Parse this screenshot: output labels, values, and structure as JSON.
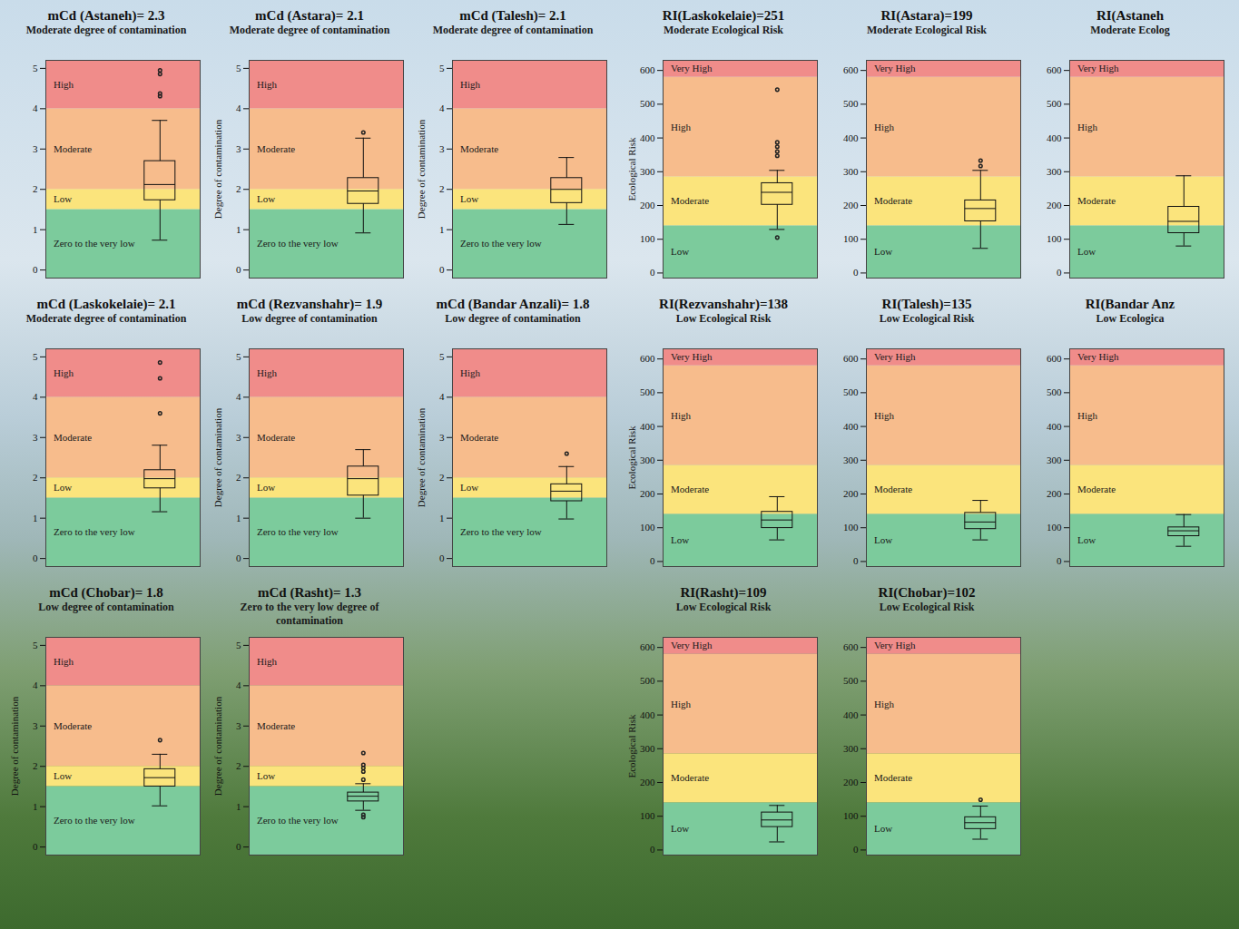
{
  "chart_data": [
    {
      "type": "boxplot",
      "title": "mCd (Astaneh)= 2.3",
      "subtitle": "Moderate degree of contamination",
      "ylabel": null,
      "ylim": [
        -0.2,
        5.2
      ],
      "yticks": [
        0,
        1,
        2,
        3,
        4,
        5
      ],
      "bands": [
        {
          "from": -0.2,
          "to": 1.5,
          "label": "Zero to the very low",
          "color": "#7ccb9c"
        },
        {
          "from": 1.5,
          "to": 2,
          "label": "Low",
          "color": "#fbe47c"
        },
        {
          "from": 2,
          "to": 4,
          "label": "Moderate",
          "color": "#f7bc8c"
        },
        {
          "from": 4,
          "to": 5.2,
          "label": "High",
          "color": "#f08c8a"
        }
      ],
      "box": {
        "whisker_low": 0.74,
        "q1": 1.73,
        "median": 2.12,
        "q3": 2.7,
        "whisker_high": 3.71
      },
      "outliers": [
        4.31,
        4.38,
        4.86,
        4.95
      ]
    },
    {
      "type": "boxplot",
      "title": "mCd (Astara)= 2.1",
      "subtitle": "Moderate degree of contamination",
      "ylabel": "Degree of contamination",
      "ylim": [
        -0.2,
        5.2
      ],
      "yticks": [
        0,
        1,
        2,
        3,
        4,
        5
      ],
      "bands": [
        {
          "from": -0.2,
          "to": 1.5,
          "label": "Zero to the very low",
          "color": "#7ccb9c"
        },
        {
          "from": 1.5,
          "to": 2,
          "label": "Low",
          "color": "#fbe47c"
        },
        {
          "from": 2,
          "to": 4,
          "label": "Moderate",
          "color": "#f7bc8c"
        },
        {
          "from": 4,
          "to": 5.2,
          "label": "High",
          "color": "#f08c8a"
        }
      ],
      "box": {
        "whisker_low": 0.92,
        "q1": 1.64,
        "median": 1.96,
        "q3": 2.28,
        "whisker_high": 3.27
      },
      "outliers": [
        3.41
      ]
    },
    {
      "type": "boxplot",
      "title": "mCd (Talesh)= 2.1",
      "subtitle": "Moderate degree of contamination",
      "ylabel": "Degree of contamination",
      "ylim": [
        -0.2,
        5.2
      ],
      "yticks": [
        0,
        1,
        2,
        3,
        4,
        5
      ],
      "bands": [
        {
          "from": -0.2,
          "to": 1.5,
          "label": "Zero to the very low",
          "color": "#7ccb9c"
        },
        {
          "from": 1.5,
          "to": 2,
          "label": "Low",
          "color": "#fbe47c"
        },
        {
          "from": 2,
          "to": 4,
          "label": "Moderate",
          "color": "#f7bc8c"
        },
        {
          "from": 4,
          "to": 5.2,
          "label": "High",
          "color": "#f08c8a"
        }
      ],
      "box": {
        "whisker_low": 1.13,
        "q1": 1.66,
        "median": 2.0,
        "q3": 2.28,
        "whisker_high": 2.79
      },
      "outliers": []
    },
    {
      "type": "boxplot",
      "title": "mCd (Laskokelaie)= 2.1",
      "subtitle": "Moderate degree of contamination",
      "ylabel": null,
      "ylim": [
        -0.2,
        5.2
      ],
      "yticks": [
        0,
        1,
        2,
        3,
        4,
        5
      ],
      "bands": [
        {
          "from": -0.2,
          "to": 1.5,
          "label": "Zero to the very low",
          "color": "#7ccb9c"
        },
        {
          "from": 1.5,
          "to": 2,
          "label": "Low",
          "color": "#fbe47c"
        },
        {
          "from": 2,
          "to": 4,
          "label": "Moderate",
          "color": "#f7bc8c"
        },
        {
          "from": 4,
          "to": 5.2,
          "label": "High",
          "color": "#f08c8a"
        }
      ],
      "box": {
        "whisker_low": 1.16,
        "q1": 1.74,
        "median": 1.98,
        "q3": 2.19,
        "whisker_high": 2.81
      },
      "outliers": [
        3.6,
        4.47,
        4.86
      ]
    },
    {
      "type": "boxplot",
      "title": "mCd (Rezvanshahr)= 1.9",
      "subtitle": "Low degree of contamination",
      "ylabel": "Degree of contamination",
      "ylim": [
        -0.2,
        5.2
      ],
      "yticks": [
        0,
        1,
        2,
        3,
        4,
        5
      ],
      "bands": [
        {
          "from": -0.2,
          "to": 1.5,
          "label": "Zero to the very low",
          "color": "#7ccb9c"
        },
        {
          "from": 1.5,
          "to": 2,
          "label": "Low",
          "color": "#fbe47c"
        },
        {
          "from": 2,
          "to": 4,
          "label": "Moderate",
          "color": "#f7bc8c"
        },
        {
          "from": 4,
          "to": 5.2,
          "label": "High",
          "color": "#f08c8a"
        }
      ],
      "box": {
        "whisker_low": 1.0,
        "q1": 1.56,
        "median": 1.98,
        "q3": 2.28,
        "whisker_high": 2.7
      },
      "outliers": []
    },
    {
      "type": "boxplot",
      "title": "mCd (Bandar Anzali)= 1.8",
      "subtitle": "Low degree of contamination",
      "ylabel": "Degree of contamination",
      "ylim": [
        -0.2,
        5.2
      ],
      "yticks": [
        0,
        1,
        2,
        3,
        4,
        5
      ],
      "bands": [
        {
          "from": -0.2,
          "to": 1.5,
          "label": "Zero to the very low",
          "color": "#7ccb9c"
        },
        {
          "from": 1.5,
          "to": 2,
          "label": "Low",
          "color": "#fbe47c"
        },
        {
          "from": 2,
          "to": 4,
          "label": "Moderate",
          "color": "#f7bc8c"
        },
        {
          "from": 4,
          "to": 5.2,
          "label": "High",
          "color": "#f08c8a"
        }
      ],
      "box": {
        "whisker_low": 0.98,
        "q1": 1.42,
        "median": 1.67,
        "q3": 1.84,
        "whisker_high": 2.28
      },
      "outliers": [
        2.6
      ]
    },
    {
      "type": "boxplot",
      "title": "mCd (Chobar)= 1.8",
      "subtitle": "Low degree of contamination",
      "ylabel": "Degree of contamination",
      "ylim": [
        -0.2,
        5.2
      ],
      "yticks": [
        0,
        1,
        2,
        3,
        4,
        5
      ],
      "bands": [
        {
          "from": -0.2,
          "to": 1.5,
          "label": "Zero to the very low",
          "color": "#7ccb9c"
        },
        {
          "from": 1.5,
          "to": 2,
          "label": "Low",
          "color": "#fbe47c"
        },
        {
          "from": 2,
          "to": 4,
          "label": "Moderate",
          "color": "#f7bc8c"
        },
        {
          "from": 4,
          "to": 5.2,
          "label": "High",
          "color": "#f08c8a"
        }
      ],
      "box": {
        "whisker_low": 1.02,
        "q1": 1.5,
        "median": 1.72,
        "q3": 1.93,
        "whisker_high": 2.3
      },
      "outliers": [
        2.65
      ]
    },
    {
      "type": "boxplot",
      "title": "mCd (Rasht)= 1.3",
      "subtitle": "Zero to the very low degree of contamination",
      "ylabel": "Degree of contamination",
      "ylim": [
        -0.2,
        5.2
      ],
      "yticks": [
        0,
        1,
        2,
        3,
        4,
        5
      ],
      "bands": [
        {
          "from": -0.2,
          "to": 1.5,
          "label": "Zero to the very low",
          "color": "#7ccb9c"
        },
        {
          "from": 1.5,
          "to": 2,
          "label": "Low",
          "color": "#fbe47c"
        },
        {
          "from": 2,
          "to": 4,
          "label": "Moderate",
          "color": "#f7bc8c"
        },
        {
          "from": 4,
          "to": 5.2,
          "label": "High",
          "color": "#f08c8a"
        }
      ],
      "box": {
        "whisker_low": 0.91,
        "q1": 1.13,
        "median": 1.26,
        "q3": 1.35,
        "whisker_high": 1.57
      },
      "outliers": [
        0.74,
        0.8,
        1.67,
        1.87,
        1.96,
        2.04,
        2.33
      ]
    },
    {
      "type": "boxplot",
      "title": "RI(Laskokelaie)=251",
      "subtitle": "Moderate Ecological Risk",
      "ylabel": "Ecological Risk",
      "ylim": [
        -15,
        630
      ],
      "yticks": [
        0,
        100,
        200,
        300,
        400,
        500,
        600
      ],
      "bands": [
        {
          "from": -15,
          "to": 140,
          "label": "Low",
          "color": "#7ccb9c"
        },
        {
          "from": 140,
          "to": 285,
          "label": "Moderate",
          "color": "#fbe47c"
        },
        {
          "from": 285,
          "to": 580,
          "label": "High",
          "color": "#f7bc8c"
        },
        {
          "from": 580,
          "to": 630,
          "label": "Very High",
          "color": "#f08c8a"
        }
      ],
      "box": {
        "whisker_low": 129,
        "q1": 202,
        "median": 239,
        "q3": 266,
        "whisker_high": 304
      },
      "outliers": [
        105,
        347,
        360,
        374,
        387,
        543
      ]
    },
    {
      "type": "boxplot",
      "title": "RI(Astara)=199",
      "subtitle": "Moderate Ecological Risk",
      "ylabel": null,
      "ylim": [
        -15,
        630
      ],
      "yticks": [
        0,
        100,
        200,
        300,
        400,
        500,
        600
      ],
      "bands": [
        {
          "from": -15,
          "to": 140,
          "label": "Low",
          "color": "#7ccb9c"
        },
        {
          "from": 140,
          "to": 285,
          "label": "Moderate",
          "color": "#fbe47c"
        },
        {
          "from": 285,
          "to": 580,
          "label": "High",
          "color": "#f7bc8c"
        },
        {
          "from": 580,
          "to": 630,
          "label": "Very High",
          "color": "#f08c8a"
        }
      ],
      "box": {
        "whisker_low": 73,
        "q1": 153,
        "median": 191,
        "q3": 215,
        "whisker_high": 304
      },
      "outliers": [
        317,
        333
      ]
    },
    {
      "type": "boxplot",
      "title": "RI(Astaneh",
      "subtitle": "Moderate Ecolog",
      "ylabel": null,
      "ylim": [
        -15,
        630
      ],
      "yticks": [
        0,
        100,
        200,
        300,
        400,
        500,
        600
      ],
      "bands": [
        {
          "from": -15,
          "to": 140,
          "label": "Low",
          "color": "#7ccb9c"
        },
        {
          "from": 140,
          "to": 285,
          "label": "Moderate",
          "color": "#fbe47c"
        },
        {
          "from": 285,
          "to": 580,
          "label": "High",
          "color": "#f7bc8c"
        },
        {
          "from": 580,
          "to": 630,
          "label": "Very High",
          "color": "#f08c8a"
        }
      ],
      "box": {
        "whisker_low": 80,
        "q1": 118,
        "median": 153,
        "q3": 196,
        "whisker_high": 288
      },
      "outliers": []
    },
    {
      "type": "boxplot",
      "title": "RI(Rezvanshahr)=138",
      "subtitle": "Low Ecological Risk",
      "ylabel": "Ecological Risk",
      "ylim": [
        -15,
        630
      ],
      "yticks": [
        0,
        100,
        200,
        300,
        400,
        500,
        600
      ],
      "bands": [
        {
          "from": -15,
          "to": 140,
          "label": "Low",
          "color": "#7ccb9c"
        },
        {
          "from": 140,
          "to": 285,
          "label": "Moderate",
          "color": "#fbe47c"
        },
        {
          "from": 285,
          "to": 580,
          "label": "High",
          "color": "#f7bc8c"
        },
        {
          "from": 580,
          "to": 630,
          "label": "Very High",
          "color": "#f08c8a"
        }
      ],
      "box": {
        "whisker_low": 64,
        "q1": 99,
        "median": 123,
        "q3": 147,
        "whisker_high": 192
      },
      "outliers": []
    },
    {
      "type": "boxplot",
      "title": "RI(Talesh)=135",
      "subtitle": "Low Ecological Risk",
      "ylabel": null,
      "ylim": [
        -15,
        630
      ],
      "yticks": [
        0,
        100,
        200,
        300,
        400,
        500,
        600
      ],
      "bands": [
        {
          "from": -15,
          "to": 140,
          "label": "Low",
          "color": "#7ccb9c"
        },
        {
          "from": 140,
          "to": 285,
          "label": "Moderate",
          "color": "#fbe47c"
        },
        {
          "from": 285,
          "to": 580,
          "label": "High",
          "color": "#f7bc8c"
        },
        {
          "from": 580,
          "to": 630,
          "label": "Very High",
          "color": "#f08c8a"
        }
      ],
      "box": {
        "whisker_low": 64,
        "q1": 96,
        "median": 117,
        "q3": 144,
        "whisker_high": 181
      },
      "outliers": []
    },
    {
      "type": "boxplot",
      "title": "RI(Bandar Anz",
      "subtitle": "Low Ecologica",
      "ylabel": null,
      "ylim": [
        -15,
        630
      ],
      "yticks": [
        0,
        100,
        200,
        300,
        400,
        500,
        600
      ],
      "bands": [
        {
          "from": -15,
          "to": 140,
          "label": "Low",
          "color": "#7ccb9c"
        },
        {
          "from": 140,
          "to": 285,
          "label": "Moderate",
          "color": "#fbe47c"
        },
        {
          "from": 285,
          "to": 580,
          "label": "High",
          "color": "#f7bc8c"
        },
        {
          "from": 580,
          "to": 630,
          "label": "Very High",
          "color": "#f08c8a"
        }
      ],
      "box": {
        "whisker_low": 45,
        "q1": 75,
        "median": 91,
        "q3": 101,
        "whisker_high": 139
      },
      "outliers": []
    },
    {
      "type": "boxplot",
      "title": "RI(Rasht)=109",
      "subtitle": "Low Ecological Risk",
      "ylabel": "Ecological Risk",
      "ylim": [
        -15,
        630
      ],
      "yticks": [
        0,
        100,
        200,
        300,
        400,
        500,
        600
      ],
      "bands": [
        {
          "from": -15,
          "to": 140,
          "label": "Low",
          "color": "#7ccb9c"
        },
        {
          "from": 140,
          "to": 285,
          "label": "Moderate",
          "color": "#fbe47c"
        },
        {
          "from": 285,
          "to": 580,
          "label": "High",
          "color": "#f7bc8c"
        },
        {
          "from": 580,
          "to": 630,
          "label": "Very High",
          "color": "#f08c8a"
        }
      ],
      "box": {
        "whisker_low": 24,
        "q1": 68,
        "median": 89,
        "q3": 111,
        "whisker_high": 132
      },
      "outliers": []
    },
    {
      "type": "boxplot",
      "title": "RI(Chobar)=102",
      "subtitle": "Low Ecological Risk",
      "ylabel": null,
      "ylim": [
        -15,
        630
      ],
      "yticks": [
        0,
        100,
        200,
        300,
        400,
        500,
        600
      ],
      "bands": [
        {
          "from": -15,
          "to": 140,
          "label": "Low",
          "color": "#7ccb9c"
        },
        {
          "from": 140,
          "to": 285,
          "label": "Moderate",
          "color": "#fbe47c"
        },
        {
          "from": 285,
          "to": 580,
          "label": "High",
          "color": "#f7bc8c"
        },
        {
          "from": 580,
          "to": 630,
          "label": "Very High",
          "color": "#f08c8a"
        }
      ],
      "box": {
        "whisker_low": 32,
        "q1": 62,
        "median": 81,
        "q3": 97,
        "whisker_high": 130
      },
      "outliers": [
        149
      ]
    }
  ]
}
